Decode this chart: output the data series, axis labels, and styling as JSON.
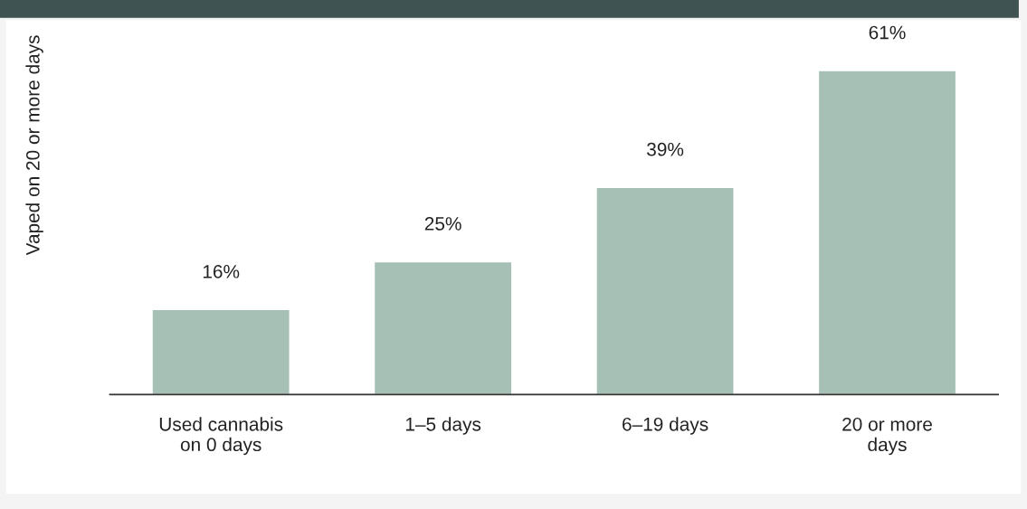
{
  "chart_data": {
    "type": "bar",
    "ylabel": "Vaped on 20 or more days",
    "categories": [
      "Used cannabis\non 0 days",
      "1–5 days",
      "6–19 days",
      "20 or more\ndays"
    ],
    "values": [
      16,
      25,
      39,
      61
    ],
    "value_labels": [
      "16%",
      "25%",
      "39%",
      "61%"
    ],
    "color": "#a7c0b5",
    "grid": false,
    "legend": false
  }
}
